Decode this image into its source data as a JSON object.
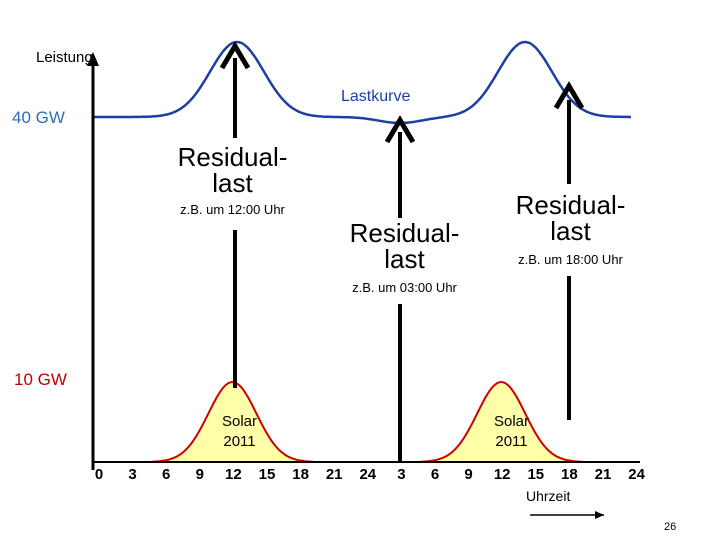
{
  "y_axis": {
    "label": "Leistung",
    "level_high": "40 GW",
    "level_low": "10 GW",
    "color_high": "#2F6DB5",
    "color_low": "#C00000"
  },
  "x_axis": {
    "label": "Uhrzeit",
    "ticks": [
      "0",
      "3",
      "6",
      "9",
      "12",
      "15",
      "18",
      "21",
      "24",
      "3",
      "6",
      "9",
      "12",
      "15",
      "18",
      "21",
      "24"
    ]
  },
  "load_curve": {
    "label": "Lastkurve",
    "color": "#1F3F9F"
  },
  "solar": {
    "label_1": "Solar",
    "label_2": "2011",
    "fill_color": "#FFFFAA",
    "line_color": "#CC0000"
  },
  "residual_boxes": [
    {
      "title_1": "Residual-",
      "title_2": "last",
      "note": "z.B. um 12:00 Uhr"
    },
    {
      "title_1": "Residual-",
      "title_2": "last",
      "note": "z.B. um 03:00 Uhr"
    },
    {
      "title_1": "Residual-",
      "title_2": "last",
      "note": "z.B. um 18:00 Uhr"
    }
  ],
  "slide_number": "26"
}
